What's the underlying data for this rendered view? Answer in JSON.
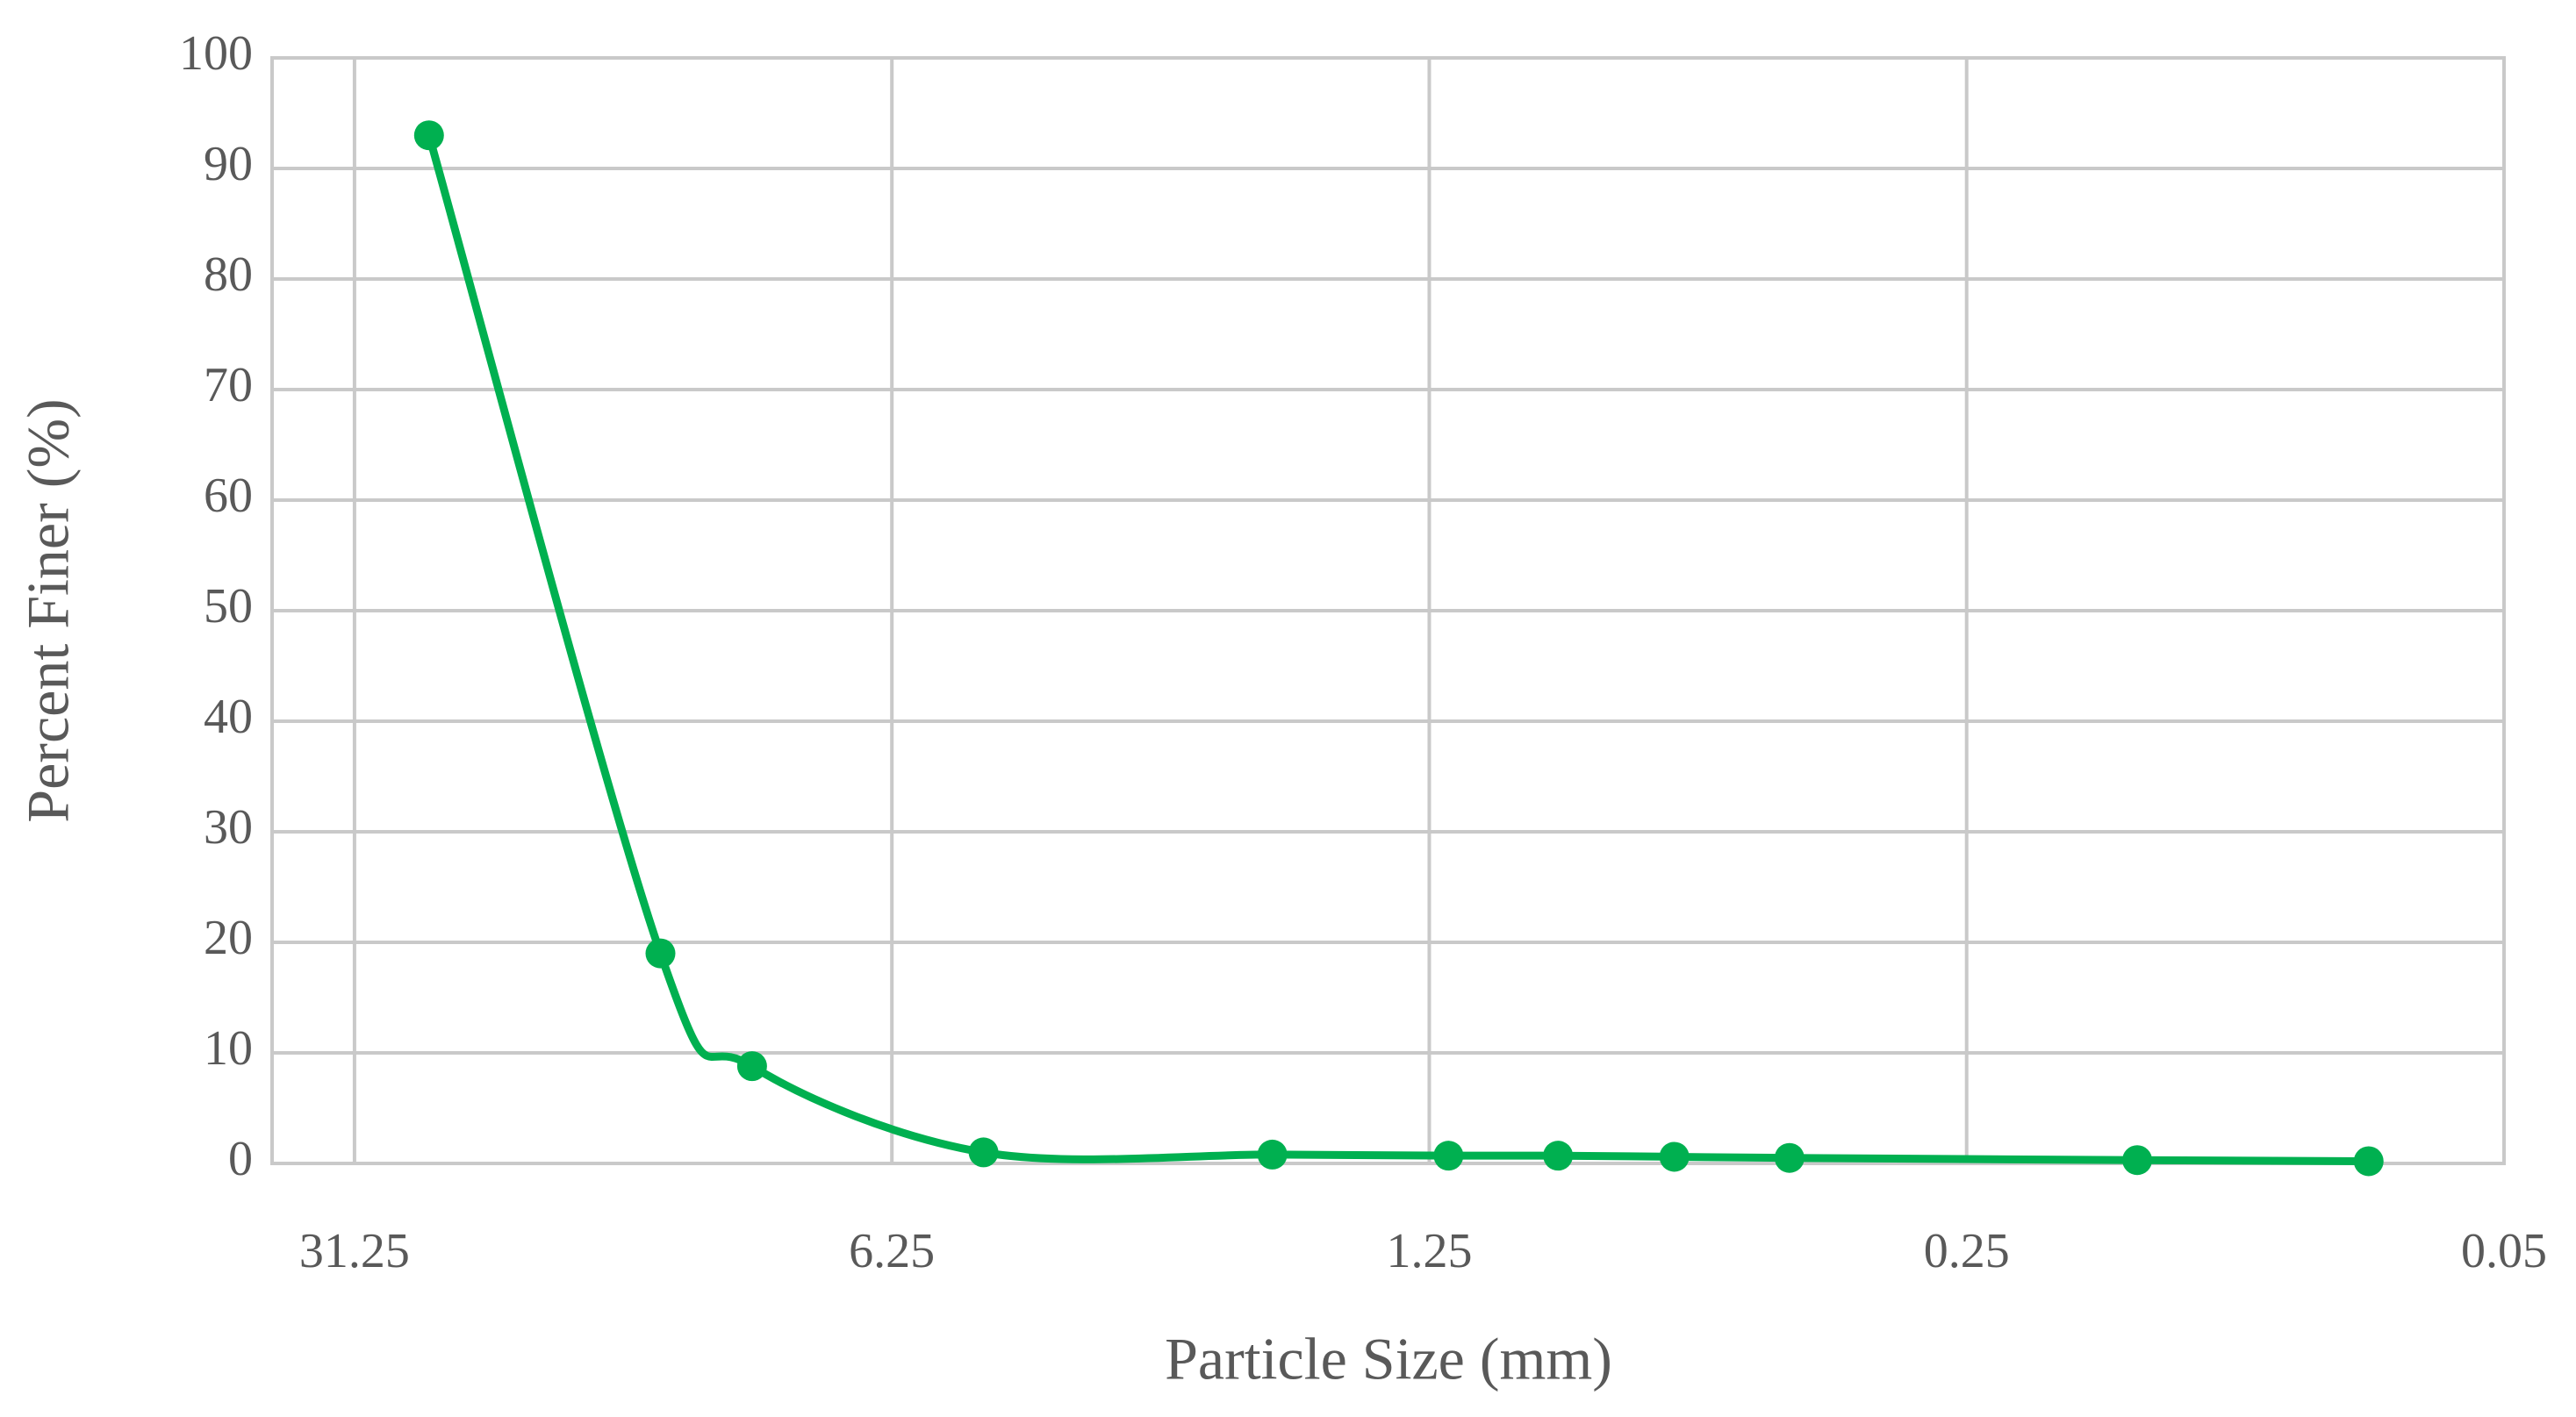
{
  "chart_data": {
    "type": "line",
    "x_label": "Particle Size (mm)",
    "y_label": "Percent Finer (%)",
    "x": [
      25,
      12.5,
      9.5,
      4.75,
      2,
      1.18,
      0.85,
      0.6,
      0.425,
      0.15,
      0.075
    ],
    "series": [
      {
        "name": "Percent Finer",
        "color": "#00b050",
        "values": [
          93,
          19,
          8.8,
          1,
          0.8,
          0.7,
          0.7,
          0.6,
          0.5,
          0.3,
          0.2
        ]
      }
    ],
    "xlim": [
      40,
      0.05
    ],
    "xticks": [
      31.25,
      6.25,
      1.25,
      0.25,
      0.05
    ],
    "x_log": true,
    "ylim": [
      0,
      100
    ],
    "yticks": [
      0,
      10,
      20,
      30,
      40,
      50,
      60,
      70,
      80,
      90,
      100
    ],
    "grid": true,
    "smooth": true,
    "markers": true
  }
}
